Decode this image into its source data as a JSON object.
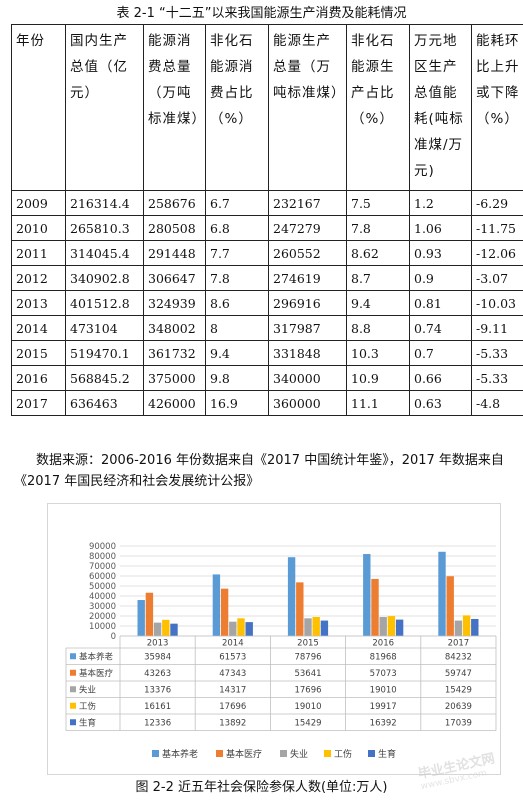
{
  "table": {
    "caption": "表 2-1 “十二五”以来我国能源生产消费及能耗情况",
    "headers": [
      "年份",
      "国内生产总值（亿元）",
      "能源消费总量（万吨标准煤）",
      "非化石能源消费占比（%）",
      "能源生产总量（万吨标准煤）",
      "非化石能源生产占比（%）",
      "万元地区生产总值能耗(吨标准煤/万元)",
      "能耗环比上升或下降（%）"
    ],
    "rows": [
      [
        "2009",
        "216314.4",
        "258676",
        "6.7",
        "232167",
        "7.5",
        "1.2",
        "-6.29"
      ],
      [
        "2010",
        "265810.3",
        "280508",
        "6.8",
        "247279",
        "7.8",
        "1.06",
        "-11.75"
      ],
      [
        "2011",
        "314045.4",
        "291448",
        "7.7",
        "260552",
        "8.62",
        "0.93",
        "-12.06"
      ],
      [
        "2012",
        "340902.8",
        "306647",
        "7.8",
        "274619",
        "8.7",
        "0.9",
        "-3.07"
      ],
      [
        "2013",
        "401512.8",
        "324939",
        "8.6",
        "296916",
        "9.4",
        "0.81",
        "-10.03"
      ],
      [
        "2014",
        "473104",
        "348002",
        "8",
        "317987",
        "8.8",
        "0.74",
        "-9.11"
      ],
      [
        "2015",
        "519470.1",
        "361732",
        "9.4",
        "331848",
        "10.3",
        "0.7",
        "-5.33"
      ],
      [
        "2016",
        "568845.2",
        "375000",
        "9.8",
        "340000",
        "10.9",
        "0.66",
        "-5.33"
      ],
      [
        "2017",
        "636463",
        "426000",
        "16.9",
        "360000",
        "11.1",
        "0.63",
        "-4.8"
      ]
    ]
  },
  "source_note": {
    "line1": "数据来源：2006-2016 年份数据来自《2017 中国统计年鉴》，2017 年数据来自",
    "line2": "《2017 年国民经济和社会发展统计公报》"
  },
  "figure_caption": "图 2-2 近五年社会保险参保人数(单位:万人)",
  "watermark": {
    "line1": "毕业生论文网",
    "line2": "www.sbvx.com"
  },
  "chart_data": {
    "type": "bar",
    "categories": [
      "2013",
      "2014",
      "2015",
      "2016",
      "2017"
    ],
    "series": [
      {
        "name": "基本养老",
        "color": "#5B9BD5",
        "values": [
          35984,
          61573,
          78796,
          81968,
          84232
        ]
      },
      {
        "name": "基本医疗",
        "color": "#ED7D31",
        "values": [
          43263,
          47343,
          53641,
          57073,
          59747
        ]
      },
      {
        "name": "失业",
        "color": "#A5A5A5",
        "values": [
          13376,
          14317,
          17696,
          19010,
          15429
        ]
      },
      {
        "name": "工伤",
        "color": "#FFC000",
        "values": [
          16161,
          17696,
          19010,
          19917,
          20639
        ]
      },
      {
        "name": "生育",
        "color": "#4472C4",
        "values": [
          12336,
          13892,
          15429,
          16392,
          17039
        ]
      }
    ],
    "ylim": [
      0,
      90000
    ],
    "yticks": [
      "0",
      "10000",
      "20000",
      "30000",
      "40000",
      "50000",
      "60000",
      "70000",
      "80000",
      "90000"
    ],
    "grid": true,
    "legend_position": "bottom",
    "data_table": true
  }
}
